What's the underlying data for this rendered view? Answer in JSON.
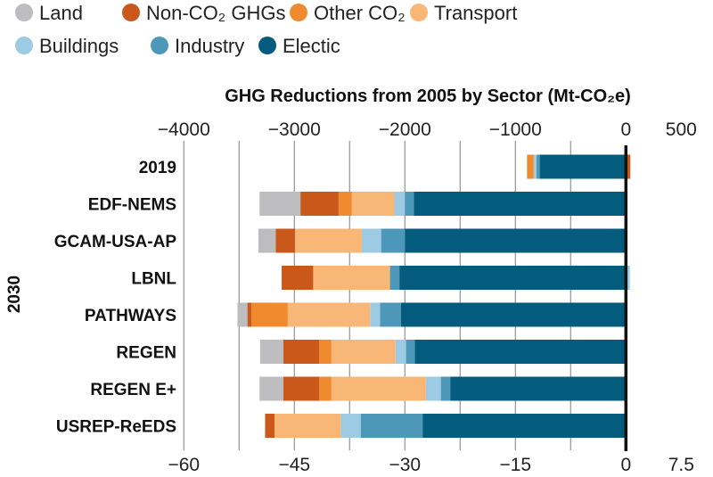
{
  "chart_data": {
    "type": "bar",
    "orientation": "horizontal",
    "stacked": true,
    "title": "GHG Reductions from 2005 by Sector (Mt-CO₂e)",
    "top_axis": {
      "ticks": [
        -4000,
        -3000,
        -2000,
        -1000,
        0,
        500
      ],
      "tick_labels": [
        "−4000",
        "−3000",
        "−2000",
        "−1000",
        "0",
        "500"
      ],
      "range": [
        -4000,
        500
      ]
    },
    "bottom_axis": {
      "ticks": [
        -60,
        -45,
        -30,
        -15,
        0,
        7.5
      ],
      "tick_labels": [
        "−60",
        "−45",
        "−30",
        "−15",
        "0",
        "7.5"
      ],
      "range": [
        -60,
        7.5
      ]
    },
    "group_label": "2030",
    "grid": true,
    "legend_position": "top-left",
    "categories": [
      "2019",
      "EDF-NEMS",
      "GCAM-USA-AP",
      "LBNL",
      "PATHWAYS",
      "REGEN",
      "REGEN E+",
      "USREP-ReEDS"
    ],
    "series": [
      {
        "name": "Electic",
        "color": "#035b7e",
        "values": [
          -780,
          -1920,
          -2000,
          -2050,
          -2035,
          -1910,
          -1590,
          -1840
        ]
      },
      {
        "name": "Industry",
        "color": "#4d97b8",
        "values": [
          -30,
          -80,
          -215,
          -85,
          -190,
          -80,
          -85,
          -560
        ]
      },
      {
        "name": "Buildings",
        "color": "#9dcbe3",
        "values": [
          -25,
          -95,
          -175,
          35,
          -90,
          -95,
          -135,
          -180
        ]
      },
      {
        "name": "Transport",
        "color": "#f9b777",
        "values": [
          0,
          -385,
          -605,
          -695,
          -745,
          -580,
          -855,
          -600
        ]
      },
      {
        "name": "Other CO₂",
        "color": "#ef8a2e",
        "values": [
          -60,
          -120,
          0,
          0,
          -330,
          -110,
          -110,
          0
        ]
      },
      {
        "name": "Non-CO₂ GHGs",
        "color": "#c9581a",
        "values": [
          40,
          -345,
          -175,
          -285,
          -35,
          -325,
          -325,
          -85
        ]
      },
      {
        "name": "Land",
        "color": "#bdbdc0",
        "values": [
          0,
          -370,
          -155,
          0,
          -90,
          -210,
          -215,
          0
        ]
      }
    ],
    "legend_order": [
      "Land",
      "Non-CO₂ GHGs",
      "Other CO₂",
      "Transport",
      "Buildings",
      "Industry",
      "Electic"
    ]
  }
}
